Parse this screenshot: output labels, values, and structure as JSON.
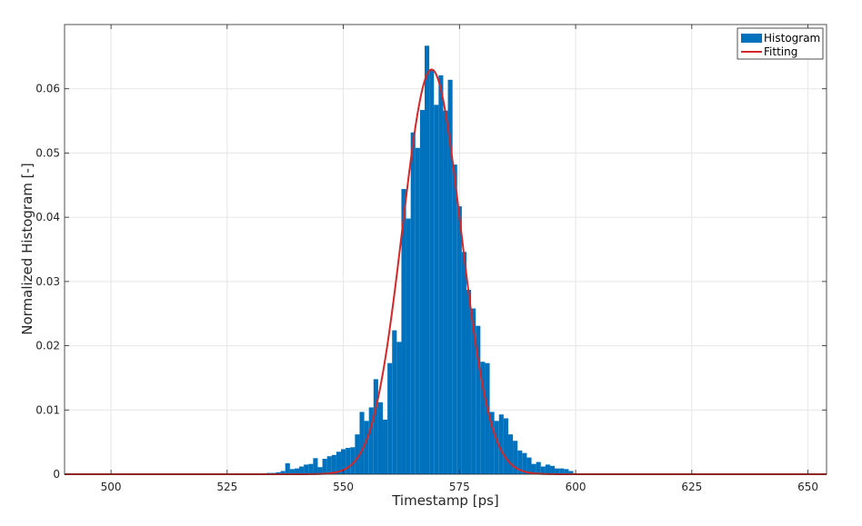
{
  "chart_data": {
    "type": "bar",
    "xlabel": "Timestamp [ps]",
    "ylabel": "Normalized Histogram [-]",
    "xlim": [
      490,
      654
    ],
    "ylim": [
      0,
      0.07
    ],
    "xticks": [
      500,
      525,
      550,
      575,
      600,
      625,
      650
    ],
    "xtick_labels": [
      "500",
      "525",
      "550",
      "575",
      "600",
      "625",
      "650"
    ],
    "yticks": [
      0,
      0.01,
      0.02,
      0.03,
      0.04,
      0.05,
      0.06
    ],
    "ytick_labels": [
      "0",
      "0.01",
      "0.02",
      "0.03",
      "0.04",
      "0.05",
      "0.06"
    ],
    "grid": true,
    "legend_position": "top-right",
    "bin_width": 1,
    "series": [
      {
        "name": "Histogram",
        "type": "histogram",
        "color": "#0072bd",
        "x": [
          533,
          534,
          535,
          536,
          537,
          538,
          539,
          540,
          541,
          542,
          543,
          544,
          545,
          546,
          547,
          548,
          549,
          550,
          551,
          552,
          553,
          554,
          555,
          556,
          557,
          558,
          559,
          560,
          561,
          562,
          563,
          564,
          565,
          566,
          567,
          568,
          569,
          570,
          571,
          572,
          573,
          574,
          575,
          576,
          577,
          578,
          579,
          580,
          581,
          582,
          583,
          584,
          585,
          586,
          587,
          588,
          589,
          590,
          591,
          592,
          593,
          594,
          595,
          596,
          597,
          598,
          599,
          600,
          604
        ],
        "values": [
          0.0001,
          0.0002,
          0.0002,
          0.0003,
          0.0005,
          0.0017,
          0.0008,
          0.0009,
          0.0012,
          0.0015,
          0.0016,
          0.0025,
          0.0011,
          0.0024,
          0.0028,
          0.003,
          0.0035,
          0.0039,
          0.0041,
          0.0042,
          0.0062,
          0.0097,
          0.0083,
          0.0104,
          0.0148,
          0.0112,
          0.0085,
          0.0173,
          0.0224,
          0.0206,
          0.0444,
          0.0398,
          0.0532,
          0.0508,
          0.0567,
          0.0667,
          0.063,
          0.0575,
          0.0621,
          0.0566,
          0.0614,
          0.0482,
          0.0417,
          0.0346,
          0.0287,
          0.0258,
          0.0231,
          0.0175,
          0.0173,
          0.0097,
          0.0083,
          0.0093,
          0.0087,
          0.0062,
          0.0052,
          0.0037,
          0.0033,
          0.0026,
          0.0016,
          0.0019,
          0.0012,
          0.0015,
          0.0013,
          0.0009,
          0.0009,
          0.0008,
          0.0005,
          0.0001,
          0.0001
        ]
      },
      {
        "name": "Fitting",
        "type": "line",
        "color": "#d62728",
        "gaussian": {
          "mean": 569,
          "sigma": 6.3,
          "peak": 0.063
        },
        "x_range": [
          490,
          654
        ]
      }
    ]
  }
}
